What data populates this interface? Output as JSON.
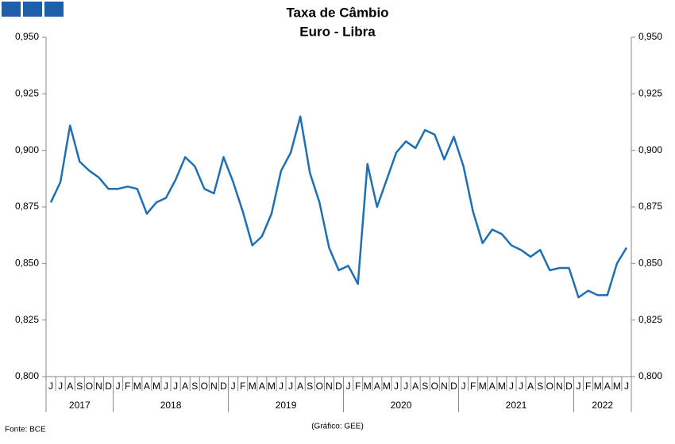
{
  "chart_data": {
    "type": "line",
    "title": "Taxa de Câmbio",
    "subtitle": "Euro - Libra",
    "groups": [
      {
        "label": "2017",
        "categories": [
          "J",
          "J",
          "A",
          "S",
          "O",
          "N",
          "D"
        ]
      },
      {
        "label": "2018",
        "categories": [
          "J",
          "F",
          "M",
          "A",
          "M",
          "J",
          "J",
          "A",
          "S",
          "O",
          "N",
          "D"
        ]
      },
      {
        "label": "2019",
        "categories": [
          "J",
          "F",
          "M",
          "A",
          "M",
          "J",
          "J",
          "A",
          "S",
          "O",
          "N",
          "D"
        ]
      },
      {
        "label": "2020",
        "categories": [
          "J",
          "F",
          "M",
          "A",
          "M",
          "J",
          "J",
          "A",
          "S",
          "O",
          "N",
          "D"
        ]
      },
      {
        "label": "2021",
        "categories": [
          "J",
          "F",
          "M",
          "A",
          "M",
          "J",
          "J",
          "A",
          "S",
          "O",
          "N",
          "D"
        ]
      },
      {
        "label": "2022",
        "categories": [
          "J",
          "F",
          "M",
          "A",
          "M",
          "J"
        ]
      }
    ],
    "color": "#1f6fb5",
    "values": [
      0.877,
      0.886,
      0.911,
      0.895,
      0.891,
      0.888,
      0.883,
      0.883,
      0.884,
      0.883,
      0.872,
      0.877,
      0.879,
      0.887,
      0.897,
      0.893,
      0.883,
      0.881,
      0.897,
      0.886,
      0.873,
      0.858,
      0.862,
      0.872,
      0.891,
      0.899,
      0.915,
      0.89,
      0.877,
      0.857,
      0.847,
      0.849,
      0.841,
      0.894,
      0.875,
      0.887,
      0.899,
      0.904,
      0.901,
      0.909,
      0.907,
      0.896,
      0.906,
      0.893,
      0.873,
      0.859,
      0.865,
      0.863,
      0.858,
      0.856,
      0.853,
      0.856,
      0.847,
      0.848,
      0.848,
      0.835,
      0.838,
      0.836,
      0.836,
      0.85,
      0.857
    ],
    "ylim": [
      0.8,
      0.95
    ],
    "yticks": [
      {
        "value": 0.8,
        "label": "0,800"
      },
      {
        "value": 0.825,
        "label": "0,825"
      },
      {
        "value": 0.85,
        "label": "0,850"
      },
      {
        "value": 0.875,
        "label": "0,875"
      },
      {
        "value": 0.9,
        "label": "0,900"
      },
      {
        "value": 0.925,
        "label": "0,925"
      },
      {
        "value": 0.95,
        "label": "0,950"
      }
    ],
    "source": "Fonte: BCE",
    "credit": "(Gráfico: GEE)"
  }
}
